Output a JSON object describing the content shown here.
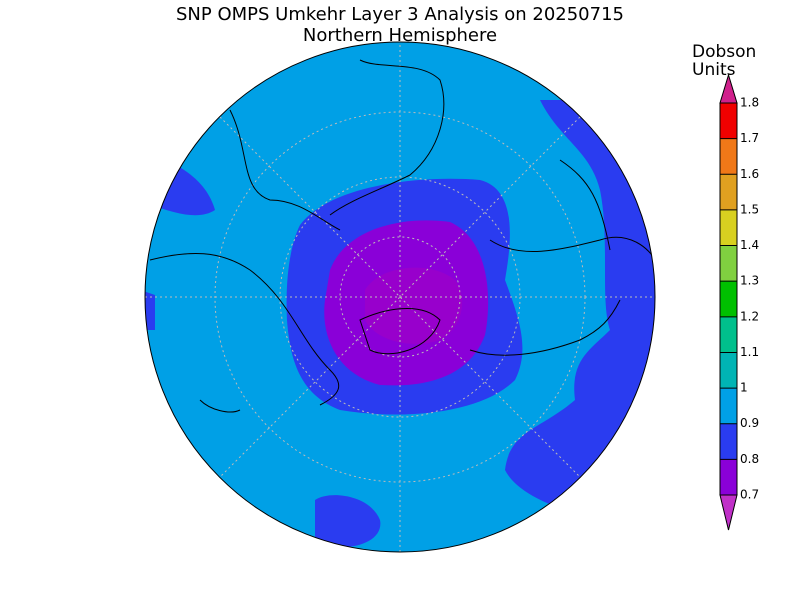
{
  "title": "SNP OMPS Umkehr Layer 3 Analysis on 20250715",
  "subtitle": "Northern Hemisphere",
  "colorbar": {
    "label": [
      "Dobson",
      "Units"
    ],
    "ticks": [
      0.7,
      0.8,
      0.9,
      1,
      1.1,
      1.2,
      1.3,
      1.4,
      1.5,
      1.6,
      1.7,
      1.8
    ],
    "colors": [
      "#c030c8",
      "#8a00d8",
      "#2a3cf0",
      "#00a0e6",
      "#00b4b4",
      "#00c08c",
      "#00c000",
      "#80d040",
      "#d8d020",
      "#e0a020",
      "#f07818",
      "#f00000",
      "#d0208c"
    ]
  }
}
